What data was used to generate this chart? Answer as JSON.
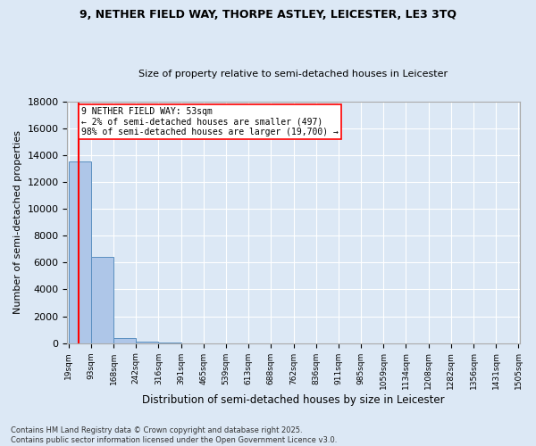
{
  "title": "9, NETHER FIELD WAY, THORPE ASTLEY, LEICESTER, LE3 3TQ",
  "subtitle": "Size of property relative to semi-detached houses in Leicester",
  "xlabel": "Distribution of semi-detached houses by size in Leicester",
  "ylabel": "Number of semi-detached properties",
  "bin_labels": [
    "19sqm",
    "93sqm",
    "168sqm",
    "242sqm",
    "316sqm",
    "391sqm",
    "465sqm",
    "539sqm",
    "613sqm",
    "688sqm",
    "762sqm",
    "836sqm",
    "911sqm",
    "985sqm",
    "1059sqm",
    "1134sqm",
    "1208sqm",
    "1282sqm",
    "1356sqm",
    "1431sqm",
    "1505sqm"
  ],
  "bar_values": [
    13500,
    6400,
    400,
    80,
    20,
    5,
    2,
    1,
    0,
    0,
    0,
    0,
    0,
    0,
    0,
    0,
    0,
    0,
    0,
    0
  ],
  "bar_color": "#aec6e8",
  "bar_edge_color": "#5a8fc0",
  "property_line_x": 0.5,
  "property_line_color": "red",
  "annotation_text": "9 NETHER FIELD WAY: 53sqm\n← 2% of semi-detached houses are smaller (497)\n98% of semi-detached houses are larger (19,700) →",
  "ylim": [
    0,
    18000
  ],
  "yticks": [
    0,
    2000,
    4000,
    6000,
    8000,
    10000,
    12000,
    14000,
    16000,
    18000
  ],
  "footnote1": "Contains HM Land Registry data © Crown copyright and database right 2025.",
  "footnote2": "Contains public sector information licensed under the Open Government Licence v3.0.",
  "background_color": "#dce8f5",
  "plot_bg_color": "#dce8f5",
  "n_bins": 20
}
